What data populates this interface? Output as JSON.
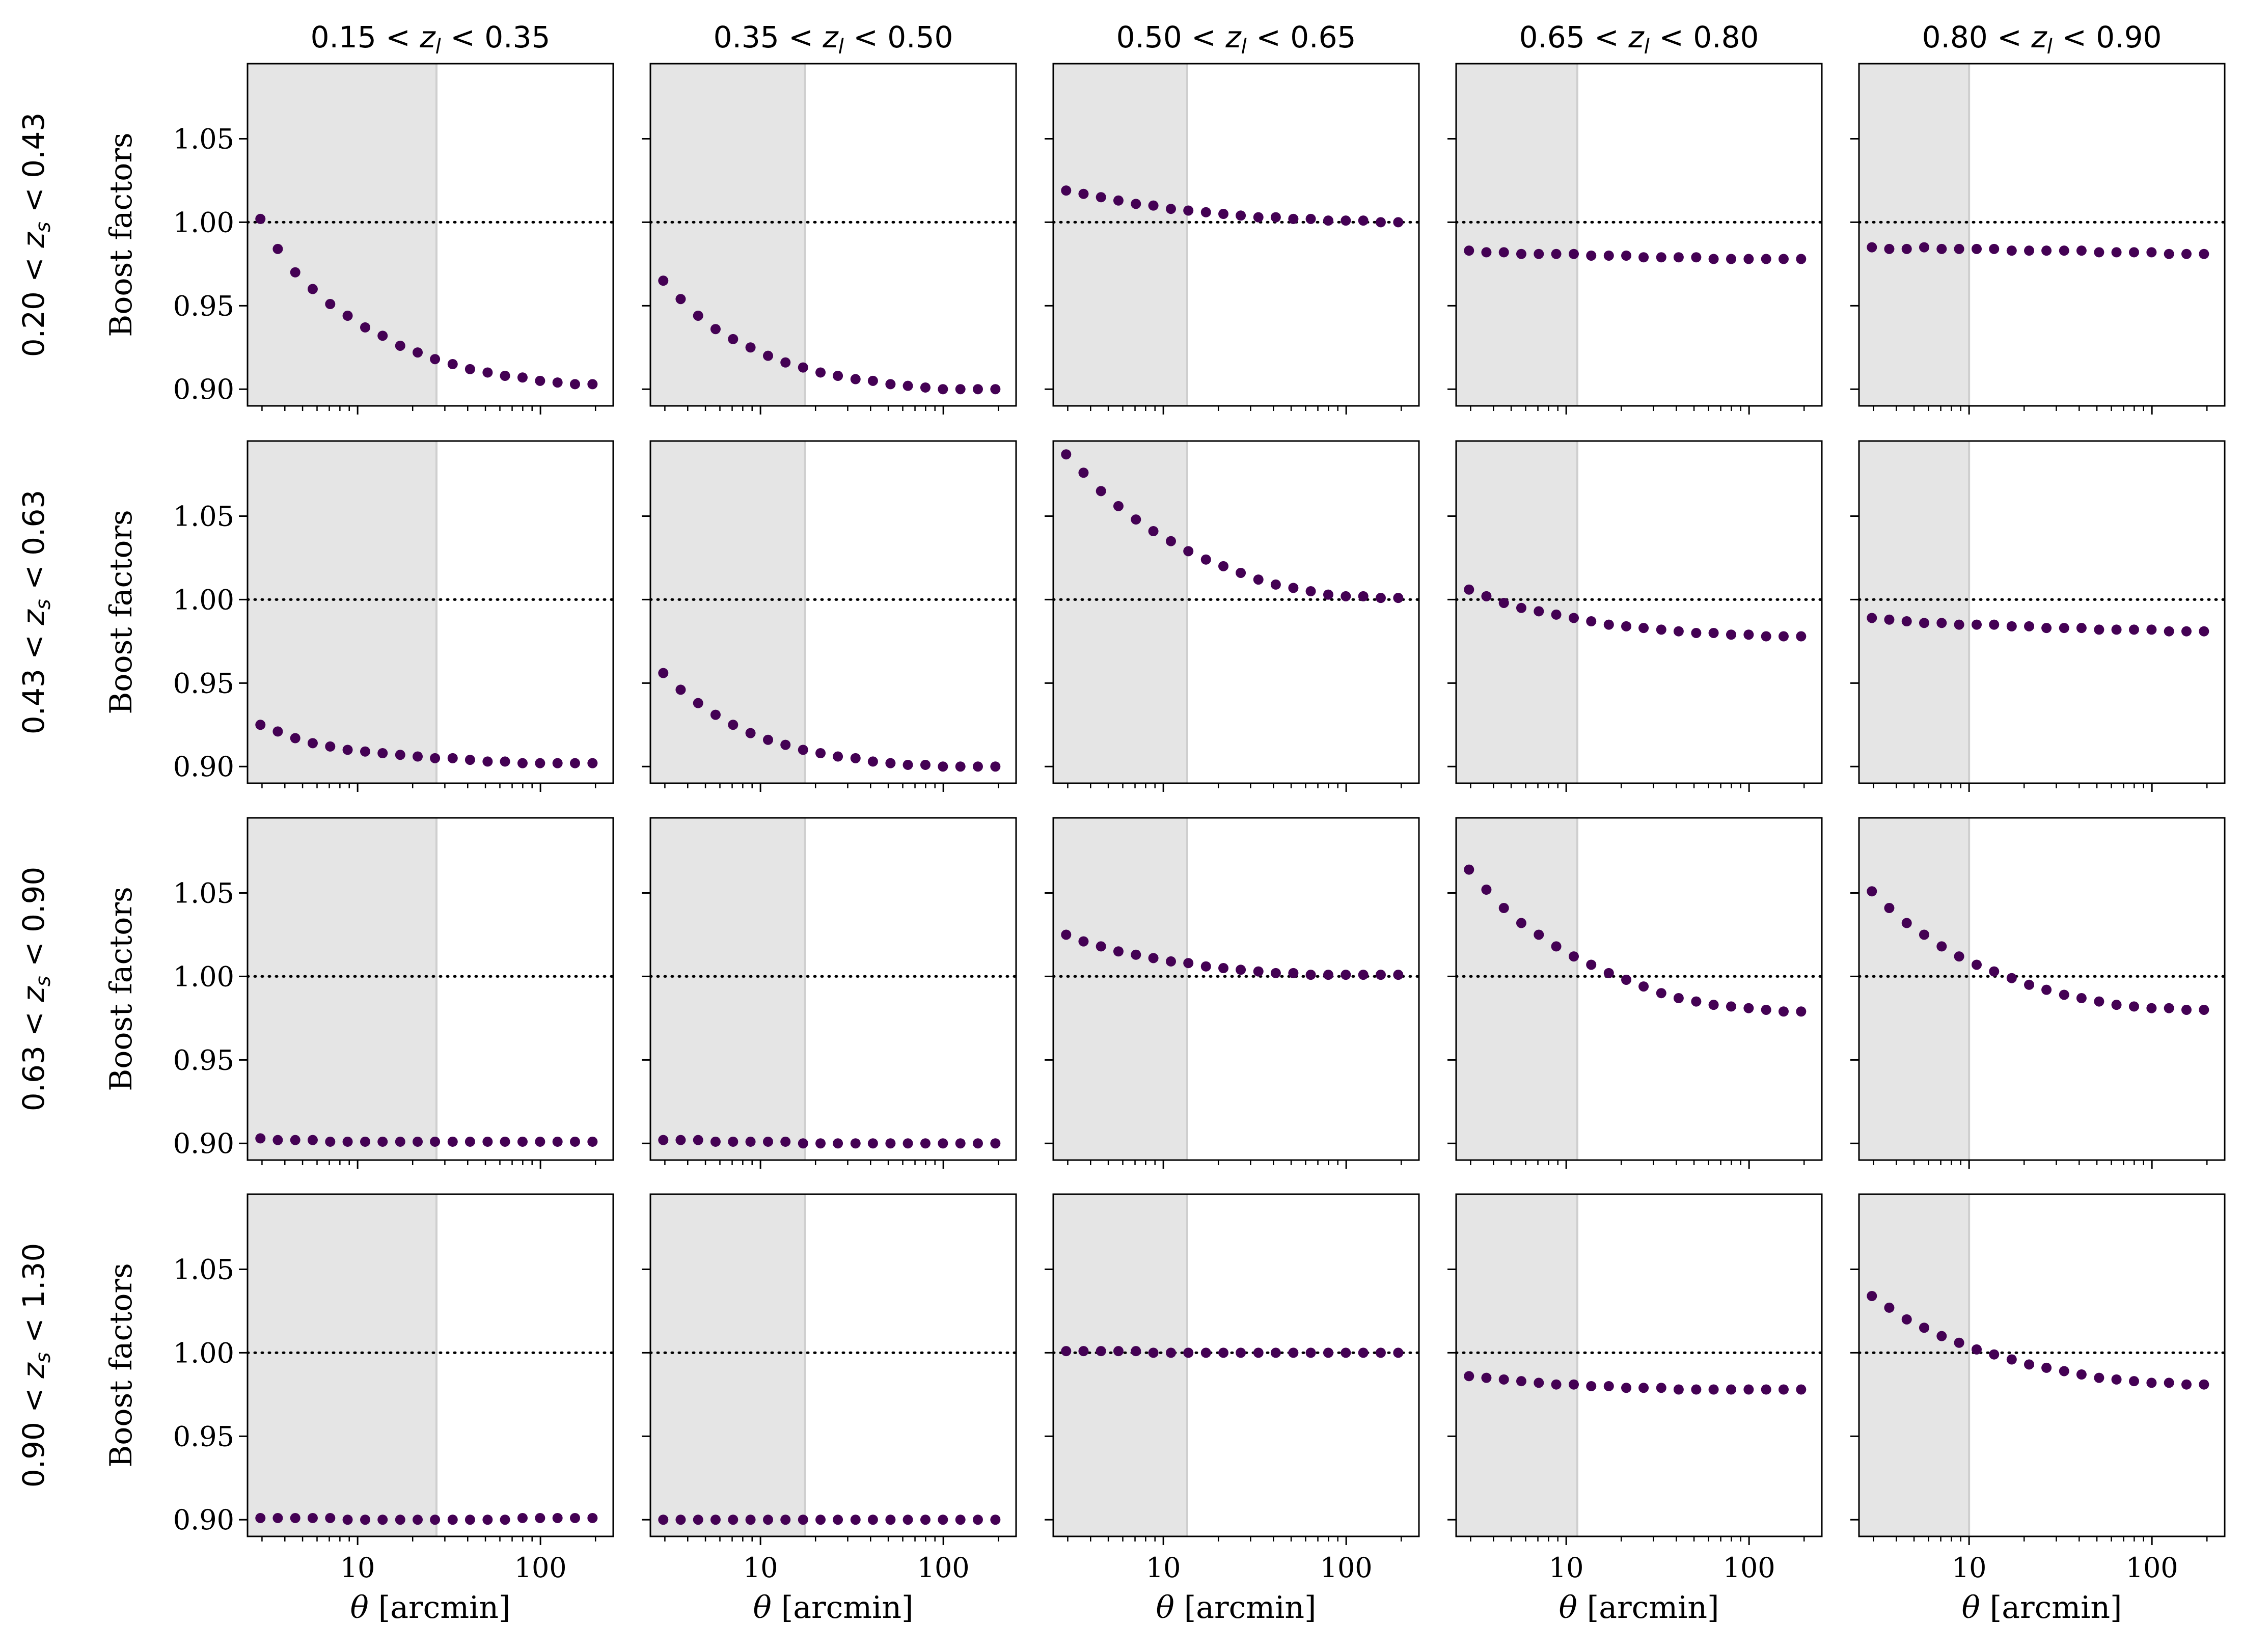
{
  "chart_data": {
    "type": "scatter",
    "layout": "4x5 grid of panels",
    "columns": [
      "0.15 < z_l < 0.35",
      "0.35 < z_l < 0.50",
      "0.50 < z_l < 0.65",
      "0.65 < z_l < 0.80",
      "0.80 < z_l < 0.90"
    ],
    "column_titles": [
      {
        "a": "0.15 < ",
        "var": "z",
        "sub": "l",
        "b": " < 0.35"
      },
      {
        "a": "0.35 < ",
        "var": "z",
        "sub": "l",
        "b": " < 0.50"
      },
      {
        "a": "0.50 < ",
        "var": "z",
        "sub": "l",
        "b": " < 0.65"
      },
      {
        "a": "0.65 < ",
        "var": "z",
        "sub": "l",
        "b": " < 0.80"
      },
      {
        "a": "0.80 < ",
        "var": "z",
        "sub": "l",
        "b": " < 0.90"
      }
    ],
    "rows": [
      "0.20 < z_s < 0.43",
      "0.43 < z_s < 0.63",
      "0.63 < z_s < 0.90",
      "0.90 < z_s < 1.30"
    ],
    "row_titles": [
      {
        "a": "0.20 < ",
        "var": "z",
        "sub": "s",
        "b": " < 0.43"
      },
      {
        "a": "0.43 < ",
        "var": "z",
        "sub": "s",
        "b": " < 0.63"
      },
      {
        "a": "0.63 < ",
        "var": "z",
        "sub": "s",
        "b": " < 0.90"
      },
      {
        "a": "0.90 < ",
        "var": "z",
        "sub": "s",
        "b": " < 1.30"
      }
    ],
    "ylabel": "Boost factors",
    "xlabel": {
      "var": "θ",
      "unit": " [arcmin]"
    },
    "xscale": "log",
    "xlim": [
      2.5,
      250
    ],
    "ylim": [
      0.89,
      1.095
    ],
    "yticks": [
      0.9,
      0.95,
      1.0,
      1.05
    ],
    "ytick_labels": [
      "0.90",
      "0.95",
      "1.00",
      "1.05"
    ],
    "xticks": [
      10,
      100
    ],
    "xtick_labels": [
      "10",
      "100"
    ],
    "reference_line": {
      "y": 1.0,
      "style": "dotted",
      "color": "#000000"
    },
    "shaded_scale_cut_arcmin": [
      27,
      17.5,
      13.5,
      11.5,
      10
    ],
    "shade_color": "#e5e5e5",
    "point_color": "#440154",
    "theta": [
      2.94,
      3.66,
      4.56,
      5.68,
      7.08,
      8.82,
      11.0,
      13.7,
      17.1,
      21.3,
      26.5,
      33.1,
      41.2,
      51.4,
      64.0,
      79.8,
      99.5,
      124.0,
      154.5,
      192.6
    ],
    "panels": [
      {
        "row": 0,
        "col": 0,
        "values": [
          1.002,
          0.984,
          0.97,
          0.96,
          0.951,
          0.944,
          0.937,
          0.932,
          0.926,
          0.922,
          0.918,
          0.915,
          0.912,
          0.91,
          0.908,
          0.907,
          0.905,
          0.904,
          0.903,
          0.903
        ]
      },
      {
        "row": 0,
        "col": 1,
        "values": [
          0.965,
          0.954,
          0.944,
          0.936,
          0.93,
          0.925,
          0.92,
          0.916,
          0.913,
          0.91,
          0.908,
          0.906,
          0.905,
          0.903,
          0.902,
          0.901,
          0.9,
          0.9,
          0.9,
          0.9
        ]
      },
      {
        "row": 0,
        "col": 2,
        "values": [
          1.019,
          1.017,
          1.015,
          1.013,
          1.011,
          1.01,
          1.008,
          1.007,
          1.006,
          1.005,
          1.004,
          1.003,
          1.003,
          1.002,
          1.002,
          1.001,
          1.001,
          1.001,
          1.0,
          1.0
        ]
      },
      {
        "row": 0,
        "col": 3,
        "values": [
          0.983,
          0.982,
          0.982,
          0.981,
          0.981,
          0.981,
          0.981,
          0.98,
          0.98,
          0.98,
          0.979,
          0.979,
          0.979,
          0.979,
          0.978,
          0.978,
          0.978,
          0.978,
          0.978,
          0.978
        ]
      },
      {
        "row": 0,
        "col": 4,
        "values": [
          0.985,
          0.984,
          0.984,
          0.985,
          0.984,
          0.984,
          0.984,
          0.984,
          0.983,
          0.983,
          0.983,
          0.983,
          0.983,
          0.982,
          0.982,
          0.982,
          0.982,
          0.981,
          0.981,
          0.981
        ]
      },
      {
        "row": 1,
        "col": 0,
        "values": [
          0.925,
          0.921,
          0.917,
          0.914,
          0.912,
          0.91,
          0.909,
          0.908,
          0.907,
          0.906,
          0.905,
          0.905,
          0.904,
          0.903,
          0.903,
          0.902,
          0.902,
          0.902,
          0.902,
          0.902
        ]
      },
      {
        "row": 1,
        "col": 1,
        "values": [
          0.956,
          0.946,
          0.938,
          0.931,
          0.925,
          0.92,
          0.916,
          0.913,
          0.91,
          0.908,
          0.906,
          0.905,
          0.903,
          0.902,
          0.901,
          0.901,
          0.9,
          0.9,
          0.9,
          0.9
        ]
      },
      {
        "row": 1,
        "col": 2,
        "values": [
          1.087,
          1.076,
          1.065,
          1.056,
          1.048,
          1.041,
          1.035,
          1.029,
          1.024,
          1.02,
          1.016,
          1.012,
          1.009,
          1.007,
          1.005,
          1.003,
          1.002,
          1.002,
          1.001,
          1.001
        ]
      },
      {
        "row": 1,
        "col": 3,
        "values": [
          1.006,
          1.002,
          0.998,
          0.995,
          0.993,
          0.991,
          0.989,
          0.987,
          0.985,
          0.984,
          0.983,
          0.982,
          0.981,
          0.98,
          0.98,
          0.979,
          0.979,
          0.978,
          0.978,
          0.978
        ]
      },
      {
        "row": 1,
        "col": 4,
        "values": [
          0.989,
          0.988,
          0.987,
          0.986,
          0.986,
          0.985,
          0.985,
          0.985,
          0.984,
          0.984,
          0.983,
          0.983,
          0.983,
          0.982,
          0.982,
          0.982,
          0.982,
          0.981,
          0.981,
          0.981
        ]
      },
      {
        "row": 2,
        "col": 0,
        "values": [
          0.903,
          0.902,
          0.902,
          0.902,
          0.901,
          0.901,
          0.901,
          0.901,
          0.901,
          0.901,
          0.901,
          0.901,
          0.901,
          0.901,
          0.901,
          0.901,
          0.901,
          0.901,
          0.901,
          0.901
        ]
      },
      {
        "row": 2,
        "col": 1,
        "values": [
          0.902,
          0.902,
          0.902,
          0.901,
          0.901,
          0.901,
          0.901,
          0.901,
          0.9,
          0.9,
          0.9,
          0.9,
          0.9,
          0.9,
          0.9,
          0.9,
          0.9,
          0.9,
          0.9,
          0.9
        ]
      },
      {
        "row": 2,
        "col": 2,
        "values": [
          1.025,
          1.021,
          1.018,
          1.015,
          1.013,
          1.011,
          1.009,
          1.008,
          1.006,
          1.005,
          1.004,
          1.003,
          1.002,
          1.002,
          1.001,
          1.001,
          1.001,
          1.001,
          1.001,
          1.001
        ]
      },
      {
        "row": 2,
        "col": 3,
        "values": [
          1.064,
          1.052,
          1.041,
          1.032,
          1.025,
          1.018,
          1.012,
          1.007,
          1.002,
          0.998,
          0.994,
          0.99,
          0.987,
          0.985,
          0.983,
          0.982,
          0.981,
          0.98,
          0.979,
          0.979
        ]
      },
      {
        "row": 2,
        "col": 4,
        "values": [
          1.051,
          1.041,
          1.032,
          1.025,
          1.018,
          1.012,
          1.007,
          1.003,
          0.999,
          0.995,
          0.992,
          0.989,
          0.987,
          0.985,
          0.983,
          0.982,
          0.981,
          0.981,
          0.98,
          0.98
        ]
      },
      {
        "row": 3,
        "col": 0,
        "values": [
          0.901,
          0.901,
          0.901,
          0.901,
          0.901,
          0.9,
          0.9,
          0.9,
          0.9,
          0.9,
          0.9,
          0.9,
          0.9,
          0.9,
          0.9,
          0.901,
          0.901,
          0.901,
          0.901,
          0.901
        ]
      },
      {
        "row": 3,
        "col": 1,
        "values": [
          0.9,
          0.9,
          0.9,
          0.9,
          0.9,
          0.9,
          0.9,
          0.9,
          0.9,
          0.9,
          0.9,
          0.9,
          0.9,
          0.9,
          0.9,
          0.9,
          0.9,
          0.9,
          0.9,
          0.9
        ]
      },
      {
        "row": 3,
        "col": 2,
        "values": [
          1.001,
          1.001,
          1.001,
          1.001,
          1.001,
          1.0,
          1.0,
          1.0,
          1.0,
          1.0,
          1.0,
          1.0,
          1.0,
          1.0,
          1.0,
          1.0,
          1.0,
          1.0,
          1.0,
          1.0
        ]
      },
      {
        "row": 3,
        "col": 3,
        "values": [
          0.986,
          0.985,
          0.984,
          0.983,
          0.982,
          0.981,
          0.981,
          0.98,
          0.98,
          0.979,
          0.979,
          0.979,
          0.978,
          0.978,
          0.978,
          0.978,
          0.978,
          0.978,
          0.978,
          0.978
        ]
      },
      {
        "row": 3,
        "col": 4,
        "values": [
          1.034,
          1.027,
          1.02,
          1.015,
          1.01,
          1.006,
          1.002,
          0.999,
          0.996,
          0.993,
          0.991,
          0.989,
          0.987,
          0.985,
          0.984,
          0.983,
          0.982,
          0.982,
          0.981,
          0.981
        ]
      }
    ]
  }
}
